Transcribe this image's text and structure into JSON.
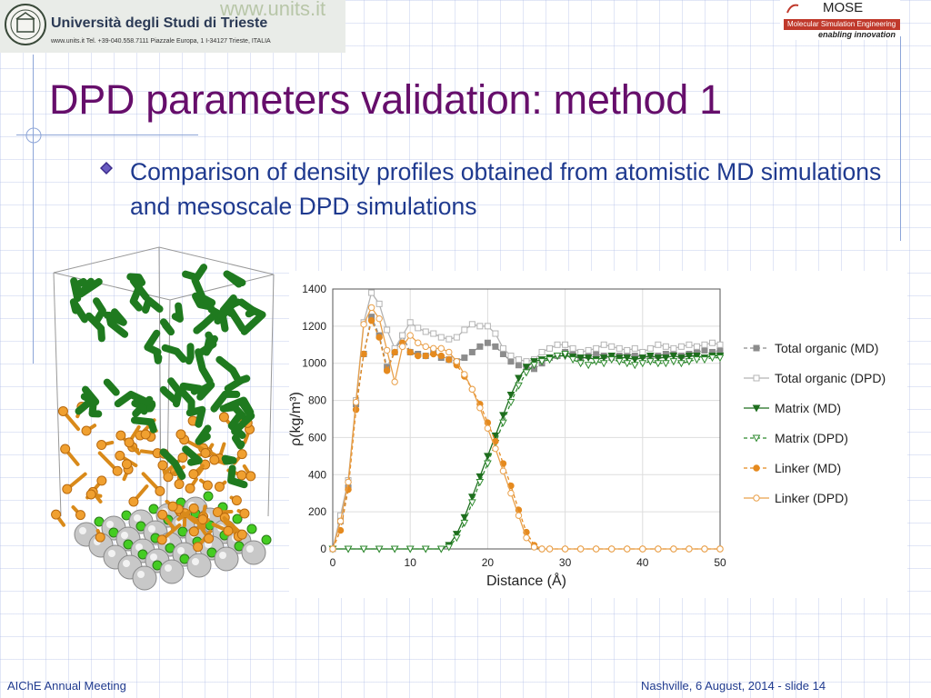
{
  "header": {
    "university_name": "Università degli Studi di Trieste",
    "university_contact": "www.units.it  Tel. +39-040.558.7111  Piazzale Europa, 1  I-34127 Trieste, ITALIA",
    "website_watermark": "www.units.it",
    "mose_title": "MOSE",
    "mose_subtitle": "Molecular Simulation Engineering",
    "mose_tagline": "enabling innovation"
  },
  "slide": {
    "title": "DPD parameters validation: method 1",
    "bullet": "Comparison of density profiles obtained from atomistic MD simulations and mesoscale DPD simulations"
  },
  "footer": {
    "left": "AIChE Annual Meeting",
    "right": "Nashville, 6 August, 2014 - slide 14"
  },
  "colors": {
    "title": "#660e6b",
    "text": "#1f3a8f",
    "total_md": "#8c8c8c",
    "total_dpd": "#b4b4b4",
    "matrix_md": "#1e6e1e",
    "matrix_dpd": "#2f8a2f",
    "linker_md": "#e58a1f",
    "linker_dpd": "#e9a04a"
  },
  "chart_data": {
    "type": "line",
    "title": "",
    "xlabel": "Distance (Å)",
    "ylabel": "ρ(kg/m³)",
    "xlim": [
      0,
      50
    ],
    "ylim": [
      0,
      1400
    ],
    "xticks": [
      0,
      10,
      20,
      30,
      40,
      50
    ],
    "yticks": [
      0,
      200,
      400,
      600,
      800,
      1000,
      1200,
      1400
    ],
    "legend_position": "right",
    "series": [
      {
        "name": "Total organic (MD)",
        "color": "#8c8c8c",
        "dash": "4,3",
        "marker": "square",
        "filled": true,
        "x": [
          0,
          1,
          2,
          3,
          4,
          5,
          6,
          7,
          8,
          9,
          10,
          11,
          12,
          13,
          14,
          15,
          16,
          17,
          18,
          19,
          20,
          21,
          22,
          23,
          24,
          25,
          26,
          27,
          28,
          29,
          30,
          31,
          32,
          33,
          34,
          35,
          36,
          37,
          38,
          39,
          40,
          41,
          42,
          43,
          44,
          45,
          46,
          47,
          48,
          49,
          50
        ],
        "y": [
          0,
          150,
          330,
          780,
          1050,
          1250,
          1150,
          980,
          1060,
          1150,
          1060,
          1050,
          1040,
          1060,
          1030,
          1020,
          1010,
          1030,
          1060,
          1090,
          1110,
          1090,
          1050,
          1010,
          990,
          980,
          970,
          1000,
          1030,
          1040,
          1060,
          1050,
          1030,
          1040,
          1050,
          1040,
          1030,
          1040,
          1050,
          1040,
          1040,
          1030,
          1040,
          1050,
          1060,
          1040,
          1050,
          1060,
          1070,
          1060,
          1070
        ]
      },
      {
        "name": "Total organic (DPD)",
        "color": "#b4b4b4",
        "dash": "",
        "marker": "square",
        "filled": false,
        "x": [
          0,
          1,
          2,
          3,
          4,
          5,
          6,
          7,
          8,
          9,
          10,
          11,
          12,
          13,
          14,
          15,
          16,
          17,
          18,
          19,
          20,
          21,
          22,
          23,
          24,
          25,
          26,
          27,
          28,
          29,
          30,
          31,
          32,
          33,
          34,
          35,
          36,
          37,
          38,
          39,
          40,
          41,
          42,
          43,
          44,
          45,
          46,
          47,
          48,
          49,
          50
        ],
        "y": [
          0,
          180,
          370,
          800,
          1220,
          1380,
          1320,
          1180,
          1080,
          1150,
          1220,
          1190,
          1170,
          1160,
          1140,
          1130,
          1140,
          1180,
          1210,
          1200,
          1200,
          1160,
          1080,
          1040,
          1020,
          1010,
          1020,
          1060,
          1080,
          1100,
          1100,
          1080,
          1060,
          1070,
          1080,
          1100,
          1090,
          1080,
          1070,
          1080,
          1060,
          1080,
          1100,
          1090,
          1080,
          1090,
          1100,
          1090,
          1100,
          1110,
          1100
        ]
      },
      {
        "name": "Matrix (MD)",
        "color": "#1e6e1e",
        "dash": "",
        "marker": "triangle",
        "filled": true,
        "x": [
          0,
          2,
          4,
          6,
          8,
          10,
          12,
          14,
          15,
          16,
          17,
          18,
          19,
          20,
          21,
          22,
          23,
          24,
          25,
          26,
          27,
          28,
          29,
          30,
          31,
          32,
          33,
          34,
          35,
          36,
          37,
          38,
          39,
          40,
          41,
          42,
          43,
          44,
          45,
          46,
          47,
          48,
          49,
          50
        ],
        "y": [
          0,
          0,
          0,
          0,
          0,
          0,
          0,
          0,
          20,
          80,
          170,
          280,
          390,
          500,
          610,
          720,
          830,
          920,
          980,
          1010,
          1020,
          1030,
          1040,
          1040,
          1035,
          1030,
          1030,
          1020,
          1030,
          1040,
          1030,
          1030,
          1020,
          1030,
          1040,
          1030,
          1030,
          1040,
          1030,
          1040,
          1040,
          1030,
          1040,
          1040
        ]
      },
      {
        "name": "Matrix (DPD)",
        "color": "#2f8a2f",
        "dash": "4,3",
        "marker": "triangle",
        "filled": false,
        "x": [
          0,
          2,
          4,
          6,
          8,
          10,
          12,
          14,
          15,
          16,
          17,
          18,
          19,
          20,
          21,
          22,
          23,
          24,
          25,
          26,
          27,
          28,
          29,
          30,
          31,
          32,
          33,
          34,
          35,
          36,
          37,
          38,
          39,
          40,
          41,
          42,
          43,
          44,
          45,
          46,
          47,
          48,
          49,
          50
        ],
        "y": [
          0,
          0,
          0,
          0,
          0,
          0,
          0,
          0,
          10,
          60,
          140,
          250,
          360,
          460,
          570,
          680,
          790,
          880,
          950,
          990,
          1010,
          1020,
          1040,
          1050,
          1020,
          1000,
          990,
          1010,
          1000,
          1020,
          1010,
          1000,
          990,
          1000,
          1010,
          1000,
          1000,
          1010,
          1000,
          1010,
          1020,
          1020,
          1030,
          1030
        ]
      },
      {
        "name": "Linker (MD)",
        "color": "#e58a1f",
        "dash": "4,3",
        "marker": "circle",
        "filled": true,
        "x": [
          0,
          1,
          2,
          3,
          4,
          5,
          6,
          7,
          8,
          9,
          10,
          11,
          12,
          13,
          14,
          15,
          16,
          17,
          18,
          19,
          20,
          21,
          22,
          23,
          24,
          25,
          26,
          27,
          28,
          30,
          32,
          34,
          36,
          38,
          40,
          42,
          44,
          46,
          48,
          50
        ],
        "y": [
          0,
          100,
          320,
          750,
          1050,
          1230,
          1140,
          960,
          1060,
          1110,
          1060,
          1040,
          1040,
          1050,
          1040,
          1020,
          990,
          930,
          860,
          780,
          680,
          580,
          460,
          340,
          210,
          90,
          20,
          0,
          0,
          0,
          0,
          0,
          0,
          0,
          0,
          0,
          0,
          0,
          0,
          0
        ]
      },
      {
        "name": "Linker (DPD)",
        "color": "#e9a04a",
        "dash": "",
        "marker": "circle",
        "filled": false,
        "x": [
          0,
          1,
          2,
          3,
          4,
          5,
          6,
          7,
          8,
          9,
          10,
          11,
          12,
          13,
          14,
          15,
          16,
          17,
          18,
          19,
          20,
          21,
          22,
          23,
          24,
          25,
          26,
          27,
          28,
          30,
          32,
          34,
          36,
          38,
          40,
          42,
          44,
          46,
          48,
          50
        ],
        "y": [
          0,
          150,
          360,
          790,
          1210,
          1300,
          1240,
          1070,
          900,
          1090,
          1150,
          1110,
          1090,
          1080,
          1080,
          1060,
          1010,
          940,
          860,
          760,
          650,
          540,
          420,
          300,
          180,
          60,
          10,
          0,
          0,
          0,
          0,
          0,
          0,
          0,
          0,
          0,
          0,
          0,
          0,
          0
        ]
      }
    ]
  }
}
